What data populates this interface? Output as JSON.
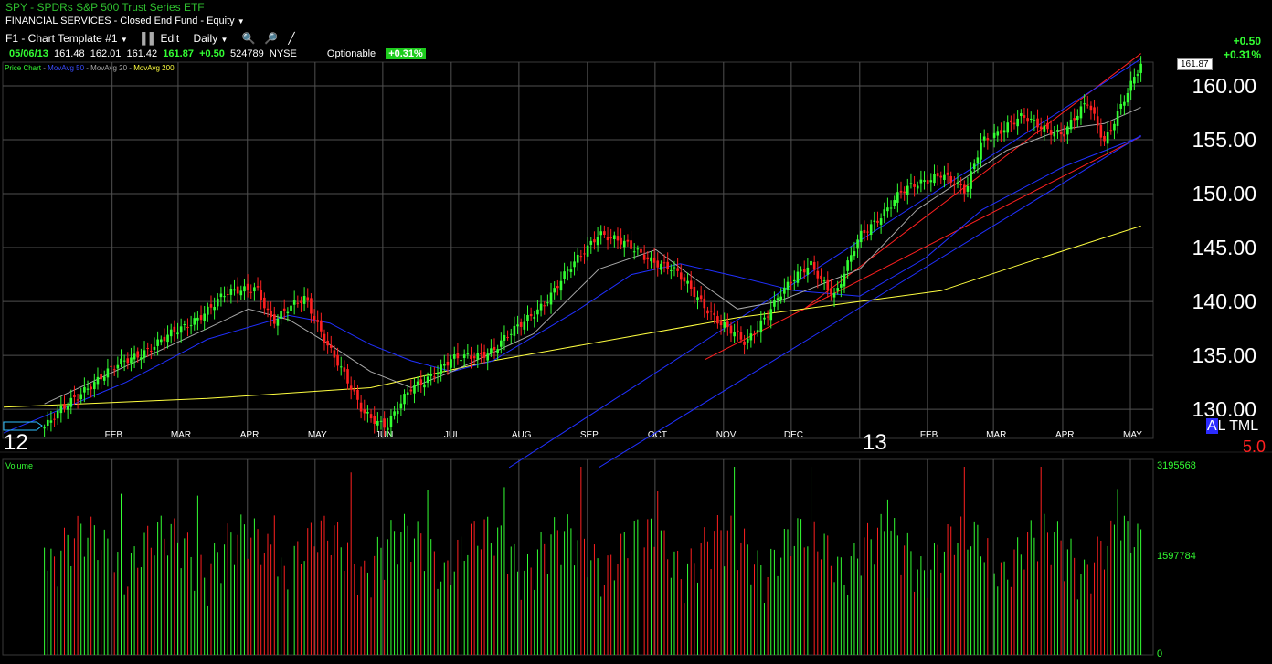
{
  "header": {
    "symbol_line": "SPY  -  SPDRs S&P 500 Trust Series ETF",
    "sector_line": "FINANCIAL SERVICES - Closed End Fund - Equity",
    "template_label": "F1 - Chart Template #1",
    "edit_label": "Edit",
    "period_label": "Daily",
    "quote": {
      "date": "05/06/13",
      "open": "161.48",
      "high": "162.01",
      "low": "161.42",
      "last": "161.87",
      "change": "+0.50",
      "volume": "524789",
      "exchange": "NYSE",
      "optionable": "Optionable",
      "pct": "+0.31%"
    },
    "corner_change": "+0.50",
    "corner_pct": "+0.31%",
    "last_price_tag": "161.87"
  },
  "legend": {
    "price_chart": "Price Chart",
    "ma50": "MovAvg 50",
    "ma20": "MovAvg 20",
    "ma200": "MovAvg 200"
  },
  "side_controls": {
    "a": "A",
    "l": "L",
    "t": "T",
    "m": "M",
    "l2": "L",
    "value": "5.0"
  },
  "volume_label": "Volume",
  "year_labels": {
    "y12": "12",
    "y13": "13"
  },
  "colors": {
    "up": "#33ff33",
    "down": "#ff2020",
    "ma50": "#2030ff",
    "ma20": "#a8a8a8",
    "ma200": "#ffff40",
    "channel": "#ff2020",
    "grid": "#505050"
  },
  "chart_data": {
    "type": "candlestick",
    "title": "SPY  -  SPDRs S&P 500 Trust Series ETF",
    "y_ticks": [
      "160.00",
      "155.00",
      "150.00",
      "145.00",
      "140.00",
      "135.00",
      "130.00"
    ],
    "ylim": [
      127.3,
      162.2
    ],
    "x_months": [
      "FEB",
      "MAR",
      "APR",
      "MAY",
      "JUN",
      "JUL",
      "AUG",
      "SEP",
      "OCT",
      "NOV",
      "DEC",
      "FEB",
      "MAR",
      "APR",
      "MAY"
    ],
    "close_path": [
      [
        2012.0,
        128.3
      ],
      [
        2012.05,
        132.0
      ],
      [
        2012.1,
        134.5
      ],
      [
        2012.17,
        137.5
      ],
      [
        2012.22,
        140.5
      ],
      [
        2012.26,
        141.5
      ],
      [
        2012.28,
        138.0
      ],
      [
        2012.32,
        140.5
      ],
      [
        2012.35,
        135.5
      ],
      [
        2012.39,
        130.0
      ],
      [
        2012.42,
        128.3
      ],
      [
        2012.45,
        132.0
      ],
      [
        2012.5,
        134.5
      ],
      [
        2012.55,
        135.5
      ],
      [
        2012.58,
        137.5
      ],
      [
        2012.62,
        140.5
      ],
      [
        2012.68,
        146.5
      ],
      [
        2012.73,
        144.5
      ],
      [
        2012.77,
        143.0
      ],
      [
        2012.83,
        138.0
      ],
      [
        2012.86,
        136.0
      ],
      [
        2012.9,
        140.5
      ],
      [
        2012.94,
        143.5
      ],
      [
        2012.97,
        140.5
      ],
      [
        2013.0,
        146.0
      ],
      [
        2013.05,
        150.0
      ],
      [
        2013.1,
        152.0
      ],
      [
        2013.13,
        150.0
      ],
      [
        2013.15,
        155.0
      ],
      [
        2013.2,
        157.0
      ],
      [
        2013.25,
        155.5
      ],
      [
        2013.28,
        158.5
      ],
      [
        2013.3,
        155.0
      ],
      [
        2013.33,
        159.5
      ],
      [
        2013.345,
        161.87
      ]
    ],
    "ma20": [
      [
        2012.0,
        130.5
      ],
      [
        2012.1,
        134.0
      ],
      [
        2012.2,
        137.5
      ],
      [
        2012.25,
        139.3
      ],
      [
        2012.3,
        138.3
      ],
      [
        2012.35,
        136.0
      ],
      [
        2012.4,
        133.5
      ],
      [
        2012.45,
        132.0
      ],
      [
        2012.5,
        133.5
      ],
      [
        2012.6,
        137.0
      ],
      [
        2012.68,
        143.0
      ],
      [
        2012.75,
        144.8
      ],
      [
        2012.8,
        142.0
      ],
      [
        2012.85,
        139.3
      ],
      [
        2012.9,
        140.0
      ],
      [
        2012.95,
        141.5
      ],
      [
        2013.0,
        143.0
      ],
      [
        2013.07,
        148.5
      ],
      [
        2013.12,
        151.0
      ],
      [
        2013.18,
        154.0
      ],
      [
        2013.25,
        156.0
      ],
      [
        2013.3,
        156.5
      ],
      [
        2013.345,
        158.0
      ]
    ],
    "ma50": [
      [
        2011.95,
        127.8
      ],
      [
        2012.1,
        132.5
      ],
      [
        2012.2,
        136.5
      ],
      [
        2012.3,
        138.7
      ],
      [
        2012.35,
        138.0
      ],
      [
        2012.4,
        136.0
      ],
      [
        2012.45,
        134.5
      ],
      [
        2012.5,
        133.5
      ],
      [
        2012.55,
        134.5
      ],
      [
        2012.65,
        139.0
      ],
      [
        2012.72,
        142.5
      ],
      [
        2012.78,
        143.5
      ],
      [
        2012.85,
        142.3
      ],
      [
        2012.92,
        141.0
      ],
      [
        2013.0,
        140.5
      ],
      [
        2013.08,
        144.0
      ],
      [
        2013.15,
        148.5
      ],
      [
        2013.25,
        152.5
      ],
      [
        2013.345,
        155.3
      ]
    ],
    "ma200": [
      [
        2011.95,
        130.2
      ],
      [
        2012.2,
        131.0
      ],
      [
        2012.4,
        132.0
      ],
      [
        2012.55,
        134.5
      ],
      [
        2012.7,
        136.5
      ],
      [
        2012.85,
        138.5
      ],
      [
        2013.0,
        140.0
      ],
      [
        2013.1,
        141.0
      ],
      [
        2013.2,
        143.5
      ],
      [
        2013.345,
        147.0
      ]
    ],
    "channel_lines": [
      {
        "color": "red",
        "points": [
          [
            2012.81,
            134.6
          ],
          [
            2013.345,
            155.3
          ]
        ]
      },
      {
        "color": "red",
        "points": [
          [
            2012.93,
            139.2
          ],
          [
            2013.345,
            163.0
          ]
        ]
      },
      {
        "color": "blue",
        "points": [
          [
            2012.57,
            124.6
          ],
          [
            2013.345,
            162.5
          ]
        ]
      },
      {
        "color": "blue",
        "points": [
          [
            2012.68,
            124.6
          ],
          [
            2013.345,
            155.4
          ]
        ]
      }
    ],
    "volume": {
      "ylim": [
        0,
        3195568
      ],
      "y_ticks": [
        "3195568",
        "1597784",
        "0"
      ]
    }
  }
}
